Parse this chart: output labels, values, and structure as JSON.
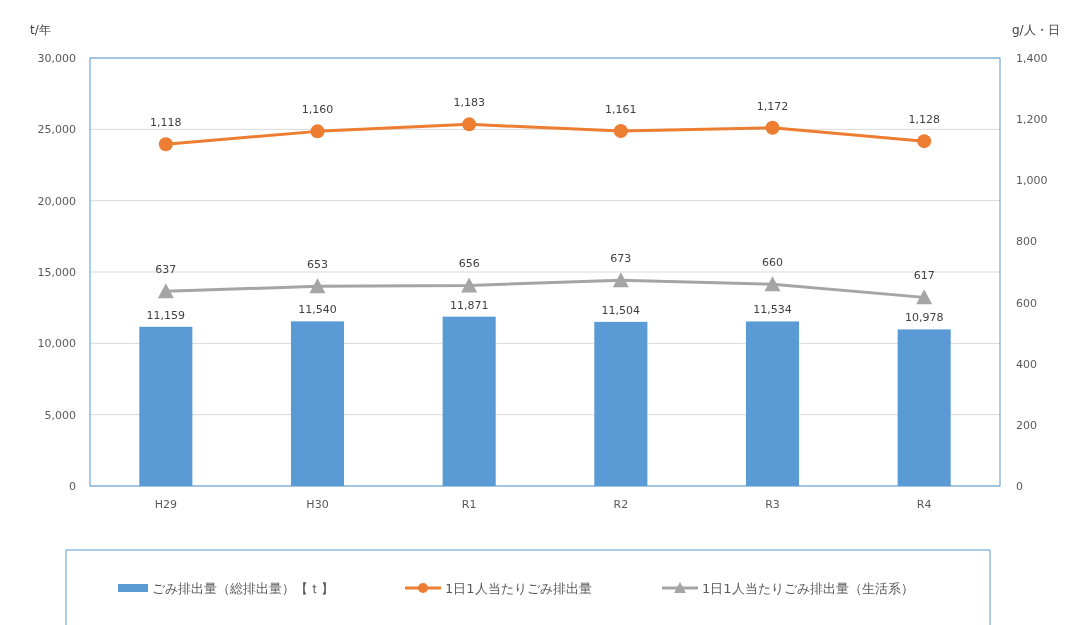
{
  "chart_data": {
    "type": "bar",
    "ylabel": "t/年",
    "y2label": "g/人・日",
    "categories": [
      "H29",
      "H30",
      "R1",
      "R2",
      "R3",
      "R4"
    ],
    "series": [
      {
        "name": "ごみ排出量（総排出量）【ｔ】",
        "color": "#5b9bd5",
        "values": [
          11159,
          11540,
          11871,
          11504,
          11534,
          10978
        ],
        "value_labels": [
          "11,159",
          "11,540",
          "11,871",
          "11,504",
          "11,534",
          "10,978"
        ]
      },
      {
        "name": "1日1人当たりごみ排出量",
        "type": "line",
        "axis": "y2",
        "color": "#ed7d31",
        "marker": "circle",
        "values": [
          1118,
          1160,
          1183,
          1161,
          1172,
          1128
        ],
        "value_labels": [
          "1,118",
          "1,160",
          "1,183",
          "1,161",
          "1,172",
          "1,128"
        ]
      },
      {
        "name": "1日1人当たりごみ排出量（生活系）",
        "type": "line",
        "axis": "y2",
        "color": "#a5a5a5",
        "marker": "triangle",
        "values": [
          637,
          653,
          656,
          673,
          660,
          617
        ],
        "value_labels": [
          "637",
          "653",
          "656",
          "673",
          "660",
          "617"
        ]
      }
    ],
    "ylim": [
      0,
      30000
    ],
    "yticks": [
      0,
      {
        "value": 5000,
        "label": "5,000"
      },
      {
        "value": 10000,
        "label": "10,000"
      },
      {
        "value": 15000,
        "label": "15,000"
      },
      {
        "value": 20000,
        "label": "20,000"
      },
      {
        "value": 25000,
        "label": "25,000"
      },
      {
        "value": 30000,
        "label": "30,000"
      }
    ],
    "y2lim": [
      0,
      1400
    ],
    "y2ticks": [
      0,
      200,
      400,
      600,
      800,
      {
        "value": 1000,
        "label": "1,000"
      },
      {
        "value": 1200,
        "label": "1,200"
      },
      {
        "value": 1400,
        "label": "1,400"
      }
    ],
    "grid": "y",
    "legend": "bottom"
  }
}
